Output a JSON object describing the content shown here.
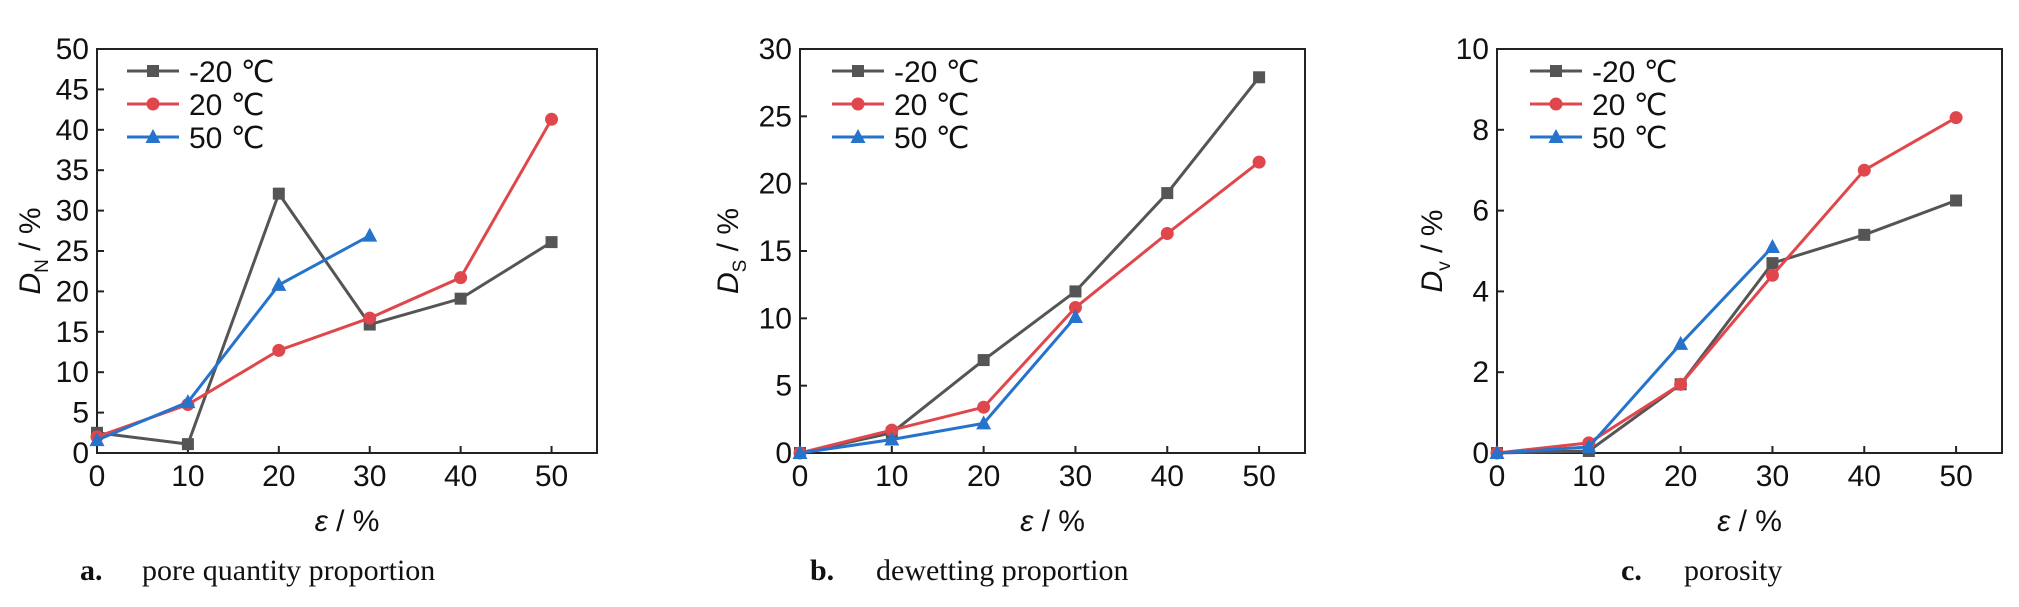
{
  "chart_data": [
    {
      "type": "line",
      "panel_letter": "a.",
      "caption": "pore quantity proportion",
      "ylabel": "D",
      "ylabel_sub": "N",
      "ylabel_unit": " / %",
      "xlabel": "ε",
      "xlabel_unit": " / %",
      "xlim": [
        0,
        55
      ],
      "ylim": [
        0,
        50
      ],
      "xticks": [
        0,
        10,
        20,
        30,
        40,
        50
      ],
      "yticks": [
        0,
        5,
        10,
        15,
        20,
        25,
        30,
        35,
        40,
        45,
        50
      ],
      "legend_position": "top-left",
      "series": [
        {
          "name": "-20 ℃",
          "color": "#555555",
          "marker": "square",
          "x": [
            0,
            10,
            20,
            30,
            40,
            50
          ],
          "y": [
            2.5,
            1.1,
            32.1,
            15.9,
            19.1,
            26.1
          ]
        },
        {
          "name": "20 ℃",
          "color": "#e0474c",
          "marker": "circle",
          "x": [
            0,
            10,
            20,
            30,
            40,
            50
          ],
          "y": [
            2.0,
            6.0,
            12.7,
            16.7,
            21.7,
            41.3
          ]
        },
        {
          "name": "50 ℃",
          "color": "#2673cc",
          "marker": "triangle",
          "x": [
            0,
            10,
            20,
            30
          ],
          "y": [
            1.6,
            6.3,
            20.8,
            26.9
          ]
        }
      ]
    },
    {
      "type": "line",
      "panel_letter": "b.",
      "caption": "dewetting proportion",
      "ylabel": "D",
      "ylabel_sub": "S",
      "ylabel_unit": " / %",
      "xlabel": "ε",
      "xlabel_unit": " / %",
      "xlim": [
        0,
        55
      ],
      "ylim": [
        0,
        30
      ],
      "xticks": [
        0,
        10,
        20,
        30,
        40,
        50
      ],
      "yticks": [
        0,
        5,
        10,
        15,
        20,
        25,
        30
      ],
      "legend_position": "top-left",
      "series": [
        {
          "name": "-20 ℃",
          "color": "#555555",
          "marker": "square",
          "x": [
            0,
            10,
            20,
            30,
            40,
            50
          ],
          "y": [
            0,
            1.5,
            6.9,
            12.0,
            19.3,
            27.9
          ]
        },
        {
          "name": "20 ℃",
          "color": "#e0474c",
          "marker": "circle",
          "x": [
            0,
            10,
            20,
            30,
            40,
            50
          ],
          "y": [
            0,
            1.7,
            3.4,
            10.8,
            16.3,
            21.6
          ]
        },
        {
          "name": "50 ℃",
          "color": "#2673cc",
          "marker": "triangle",
          "x": [
            0,
            10,
            20,
            30
          ],
          "y": [
            0,
            1.0,
            2.2,
            10.1
          ]
        }
      ]
    },
    {
      "type": "line",
      "panel_letter": "c.",
      "caption": "porosity",
      "ylabel": "D",
      "ylabel_sub": "v",
      "ylabel_unit": " / %",
      "xlabel": "ε",
      "xlabel_unit": " / %",
      "xlim": [
        0,
        55
      ],
      "ylim": [
        0,
        10
      ],
      "xticks": [
        0,
        10,
        20,
        30,
        40,
        50
      ],
      "yticks": [
        0,
        2,
        4,
        6,
        8,
        10
      ],
      "legend_position": "top-left",
      "series": [
        {
          "name": "-20 ℃",
          "color": "#555555",
          "marker": "square",
          "x": [
            0,
            10,
            20,
            30,
            40,
            50
          ],
          "y": [
            0,
            0.05,
            1.7,
            4.7,
            5.4,
            6.25
          ]
        },
        {
          "name": "20 ℃",
          "color": "#e0474c",
          "marker": "circle",
          "x": [
            0,
            10,
            20,
            30,
            40,
            50
          ],
          "y": [
            0,
            0.25,
            1.7,
            4.4,
            7.0,
            8.3
          ]
        },
        {
          "name": "50 ℃",
          "color": "#2673cc",
          "marker": "triangle",
          "x": [
            0,
            10,
            20,
            30
          ],
          "y": [
            0,
            0.15,
            2.7,
            5.1
          ]
        }
      ]
    }
  ]
}
